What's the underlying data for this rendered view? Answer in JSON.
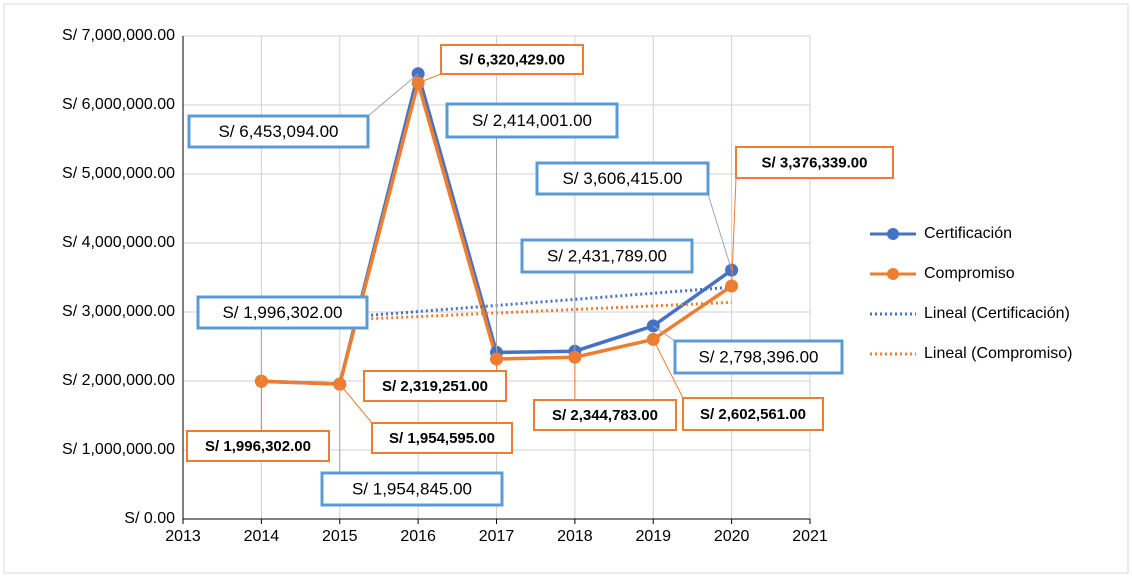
{
  "chart_data": {
    "type": "line",
    "x": [
      2014,
      2015,
      2016,
      2017,
      2018,
      2019,
      2020
    ],
    "series": [
      {
        "name": "Certificación",
        "color": "#4472c4",
        "style": "solid",
        "values": [
          1996302,
          1954845,
          6453094,
          2414001,
          2431789,
          2798396,
          3606415
        ],
        "value_labels": [
          "S/ 1,996,302.00",
          "S/ 1,954,845.00",
          "S/ 6,453,094.00",
          "S/ 2,414,001.00",
          "S/ 2,431,789.00",
          "S/ 2,798,396.00",
          "S/ 3,606,415.00"
        ]
      },
      {
        "name": "Compromiso",
        "color": "#ed7d31",
        "style": "solid",
        "values": [
          1996302,
          1954595,
          6320429,
          2319251,
          2344783,
          2602561,
          3376339
        ],
        "value_labels": [
          "S/ 1,996,302.00",
          "S/ 1,954,595.00",
          "S/ 6,320,429.00",
          "S/ 2,319,251.00",
          "S/ 2,344,783.00",
          "S/ 2,602,561.00",
          "S/ 3,376,339.00"
        ]
      },
      {
        "name": "Lineal (Certificación)",
        "color": "#4472c4",
        "style": "dotted",
        "x": [
          2014,
          2020
        ],
        "values": [
          2830000,
          3360000
        ]
      },
      {
        "name": "Lineal (Compromiso)",
        "color": "#ed7d31",
        "style": "dotted",
        "x": [
          2014,
          2020
        ],
        "values": [
          2830000,
          3140000
        ]
      }
    ],
    "xlim": [
      2013,
      2021
    ],
    "xticks": [
      2013,
      2014,
      2015,
      2016,
      2017,
      2018,
      2019,
      2020,
      2021
    ],
    "ylim": [
      0,
      7000000
    ],
    "yticks": [
      {
        "value": 0,
        "label": "S/ 0.00"
      },
      {
        "value": 1000000,
        "label": "S/ 1,000,000.00"
      },
      {
        "value": 2000000,
        "label": "S/ 2,000,000.00"
      },
      {
        "value": 3000000,
        "label": "S/ 3,000,000.00"
      },
      {
        "value": 4000000,
        "label": "S/ 4,000,000.00"
      },
      {
        "value": 5000000,
        "label": "S/ 5,000,000.00"
      },
      {
        "value": 6000000,
        "label": "S/ 6,000,000.00"
      },
      {
        "value": 7000000,
        "label": "S/ 7,000,000.00"
      }
    ],
    "grid": true,
    "legend": "right"
  }
}
